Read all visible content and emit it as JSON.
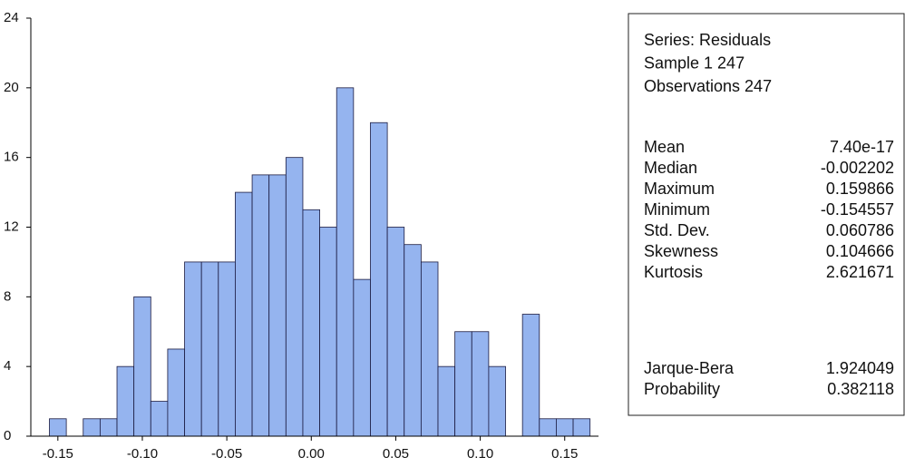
{
  "chart_data": {
    "type": "histogram",
    "bins": [
      -0.155,
      -0.145,
      -0.135,
      -0.125,
      -0.115,
      -0.105,
      -0.095,
      -0.085,
      -0.075,
      -0.065,
      -0.055,
      -0.045,
      -0.035,
      -0.025,
      -0.015,
      -0.005,
      0.005,
      0.015,
      0.025,
      0.035,
      0.045,
      0.055,
      0.065,
      0.075,
      0.085,
      0.095,
      0.105,
      0.115,
      0.125,
      0.135,
      0.145,
      0.155,
      0.165
    ],
    "values": [
      1,
      0,
      1,
      1,
      4,
      8,
      2,
      5,
      10,
      10,
      10,
      14,
      15,
      15,
      16,
      13,
      12,
      20,
      9,
      18,
      12,
      11,
      10,
      4,
      6,
      6,
      4,
      0,
      7,
      1,
      1,
      1
    ],
    "color": "#8fb0ee",
    "xlim": [
      -0.166,
      0.17
    ],
    "ylim": [
      0,
      24
    ],
    "xticks": [
      -0.15,
      {
        "value": -0.1,
        "label": "-0.10"
      },
      -0.05,
      {
        "value": 0,
        "label": "0.00"
      },
      0.05,
      {
        "value": 0.1,
        "label": "0.10"
      },
      0.15
    ],
    "yticks": [
      0,
      4,
      8,
      12,
      16,
      20,
      24
    ]
  },
  "statistics": {
    "header": [
      "Series: Residuals",
      "Sample 1 247",
      "Observations 247"
    ],
    "moments": [
      [
        "Mean",
        "7.40e-17"
      ],
      [
        "Median",
        "-0.002202"
      ],
      [
        "Maximum",
        "0.159866"
      ],
      [
        "Minimum",
        "-0.154557"
      ],
      [
        "Std. Dev.",
        "0.060786"
      ],
      [
        "Skewness",
        "0.104666"
      ],
      [
        "Kurtosis",
        "2.621671"
      ]
    ],
    "tests": [
      [
        "Jarque-Bera",
        "1.924049"
      ],
      [
        "Probability",
        "0.382118"
      ]
    ]
  }
}
